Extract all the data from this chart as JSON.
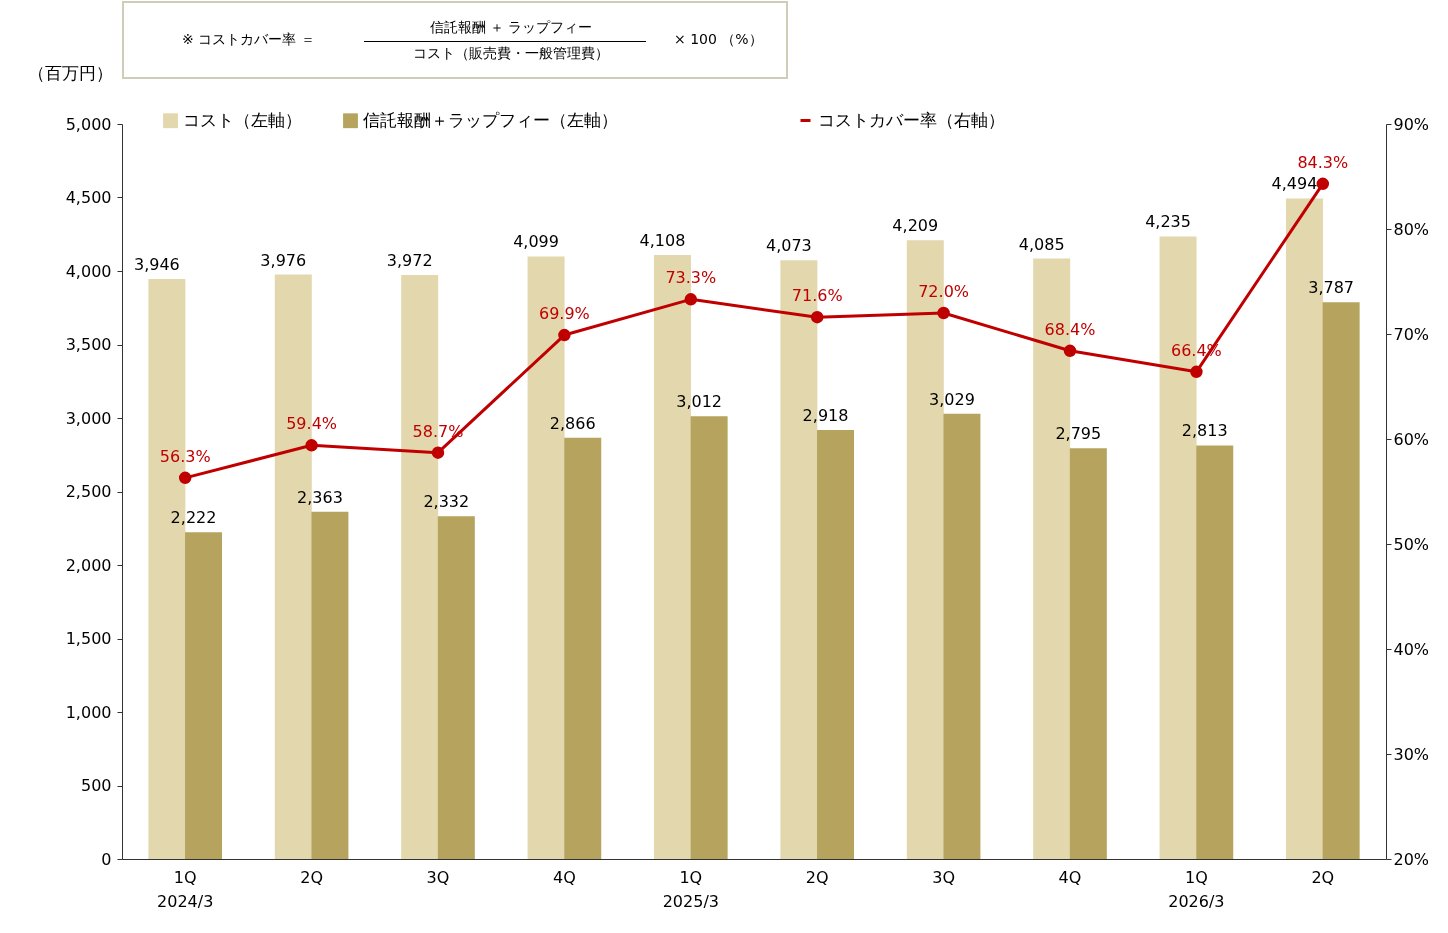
{
  "chart_data": {
    "type": "bar",
    "ylabel": "（百万円）",
    "annotations": [
      "※ コストカバー率 ＝",
      "信託報酬 ＋ ラップフィー",
      "コスト（販売費・一般管理費）",
      "× 100 （%）"
    ],
    "categories": [
      "1Q\n2024/3",
      "2Q",
      "3Q",
      "4Q",
      "1Q\n2025/3",
      "2Q",
      "3Q",
      "4Q",
      "1Q\n2026/3",
      "2Q"
    ],
    "series": [
      {
        "name": "コスト（左軸）",
        "color": "#e3d7ae",
        "values": [
          3946,
          3976,
          3972,
          4099,
          4108,
          4073,
          4209,
          4085,
          4235,
          4494
        ],
        "value_labels": [
          "3,946",
          "3,976",
          "3,972",
          "4,099",
          "4,108",
          "4,073",
          "4,209",
          "4,085",
          "4,235",
          "4,494"
        ]
      },
      {
        "name": "信託報酬＋ラップフィー（左軸）",
        "color": "#b5a35e",
        "values": [
          2222,
          2363,
          2332,
          2866,
          3012,
          2918,
          3029,
          2795,
          2813,
          3787
        ],
        "value_labels": [
          "2,222",
          "2,363",
          "2,332",
          "2,866",
          "3,012",
          "2,918",
          "3,029",
          "2,795",
          "2,813",
          "3,787"
        ]
      },
      {
        "name": "コストカバー率（右軸）",
        "type": "line",
        "axis": "y2",
        "color": "#c00000",
        "marker": "circle",
        "values": [
          56.3,
          59.4,
          58.7,
          69.9,
          73.3,
          71.6,
          72.0,
          68.4,
          66.4,
          84.3
        ],
        "value_labels": [
          "56.3%",
          "59.4%",
          "58.7%",
          "69.9%",
          "73.3%",
          "71.6%",
          "72.0%",
          "68.4%",
          "66.4%",
          "84.3%"
        ]
      }
    ],
    "ylim": [
      0,
      5000
    ],
    "yticks": [
      0,
      500,
      {
        "value": 1000,
        "label": "1,000"
      },
      {
        "value": 1500,
        "label": "1,500"
      },
      {
        "value": 2000,
        "label": "2,000"
      },
      {
        "value": 2500,
        "label": "2,500"
      },
      {
        "value": 3000,
        "label": "3,000"
      },
      {
        "value": 3500,
        "label": "3,500"
      },
      {
        "value": 4000,
        "label": "4,000"
      },
      {
        "value": 4500,
        "label": "4,500"
      },
      {
        "value": 5000,
        "label": "5,000"
      }
    ],
    "y2lim": [
      20,
      90
    ],
    "y2ticks": [
      {
        "value": 20,
        "label": "20%"
      },
      {
        "value": 30,
        "label": "30%"
      },
      {
        "value": 40,
        "label": "40%"
      },
      {
        "value": 50,
        "label": "50%"
      },
      {
        "value": 60,
        "label": "60%"
      },
      {
        "value": 70,
        "label": "70%"
      },
      {
        "value": 80,
        "label": "80%"
      },
      {
        "value": 90,
        "label": "90%"
      }
    ],
    "legend": "top",
    "grid": false
  }
}
